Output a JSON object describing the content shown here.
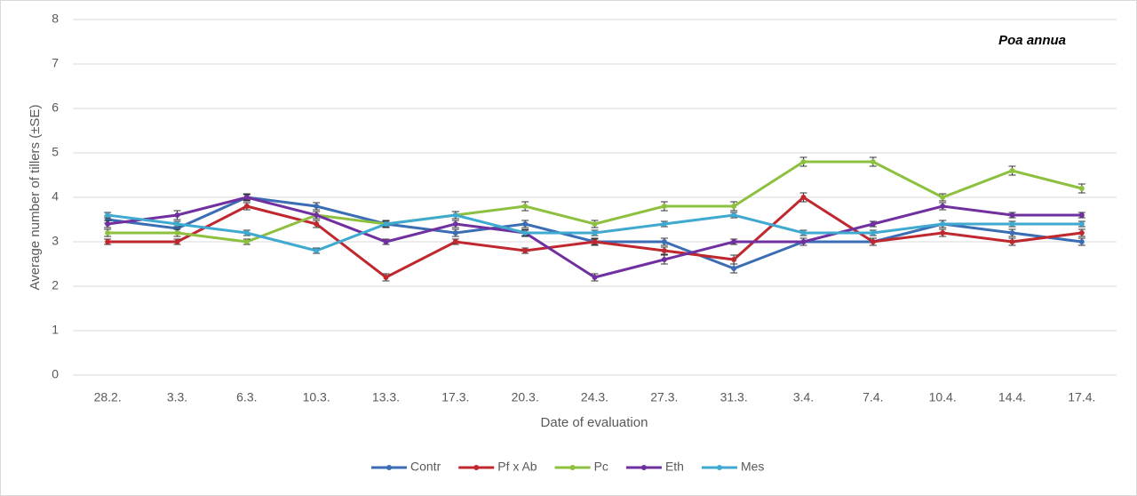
{
  "chart_data": {
    "type": "line",
    "annotation": "Poa annua",
    "y_label": "Average number of tillers (±SE)",
    "x_label": "Date of evaluation",
    "categories": [
      "28.2.",
      "3.3.",
      "6.3.",
      "10.3.",
      "13.3.",
      "17.3.",
      "20.3.",
      "24.3.",
      "27.3.",
      "31.3.",
      "3.4.",
      "7.4.",
      "10.4.",
      "14.4.",
      "17.4."
    ],
    "ylim": [
      0,
      8
    ],
    "yticks": [
      0,
      1,
      2,
      3,
      4,
      5,
      6,
      7,
      8
    ],
    "grid": true,
    "legend": "bottom",
    "series": [
      {
        "name": "Contr",
        "color": "#3b6db4",
        "values": [
          3.5,
          3.3,
          4.0,
          3.8,
          3.4,
          3.2,
          3.4,
          3.0,
          3.0,
          2.4,
          3.0,
          3.0,
          3.4,
          3.2,
          3.0
        ],
        "errors": [
          0.08,
          0.08,
          0.08,
          0.08,
          0.08,
          0.08,
          0.08,
          0.08,
          0.08,
          0.1,
          0.08,
          0.08,
          0.08,
          0.08,
          0.08
        ]
      },
      {
        "name": "Pf x Ab",
        "color": "#c0282f",
        "values": [
          3.0,
          3.0,
          3.8,
          3.4,
          2.2,
          3.0,
          2.8,
          3.0,
          2.8,
          2.6,
          4.0,
          3.0,
          3.2,
          3.0,
          3.2
        ],
        "errors": [
          0.06,
          0.06,
          0.08,
          0.08,
          0.08,
          0.06,
          0.06,
          0.06,
          0.08,
          0.1,
          0.1,
          0.08,
          0.08,
          0.08,
          0.08
        ]
      },
      {
        "name": "Pc",
        "color": "#8dc03f",
        "values": [
          3.2,
          3.2,
          3.0,
          3.6,
          3.4,
          3.6,
          3.8,
          3.4,
          3.8,
          3.8,
          4.8,
          4.8,
          4.0,
          4.6,
          4.2
        ],
        "errors": [
          0.08,
          0.08,
          0.06,
          0.08,
          0.08,
          0.08,
          0.1,
          0.08,
          0.1,
          0.1,
          0.1,
          0.1,
          0.08,
          0.1,
          0.1
        ]
      },
      {
        "name": "Eth",
        "color": "#7030a0",
        "values": [
          3.4,
          3.6,
          4.0,
          3.6,
          3.0,
          3.4,
          3.2,
          2.2,
          2.6,
          3.0,
          3.0,
          3.4,
          3.8,
          3.6,
          3.6
        ],
        "errors": [
          0.08,
          0.1,
          0.06,
          0.08,
          0.06,
          0.08,
          0.08,
          0.08,
          0.1,
          0.06,
          0.08,
          0.06,
          0.08,
          0.06,
          0.06
        ]
      },
      {
        "name": "Mes",
        "color": "#3fa9d0",
        "values": [
          3.6,
          3.4,
          3.2,
          2.8,
          3.4,
          3.6,
          3.2,
          3.2,
          3.4,
          3.6,
          3.2,
          3.2,
          3.4,
          3.4,
          3.4
        ],
        "errors": [
          0.06,
          0.06,
          0.06,
          0.06,
          0.06,
          0.08,
          0.06,
          0.06,
          0.06,
          0.06,
          0.06,
          0.06,
          0.08,
          0.06,
          0.06
        ]
      }
    ]
  }
}
